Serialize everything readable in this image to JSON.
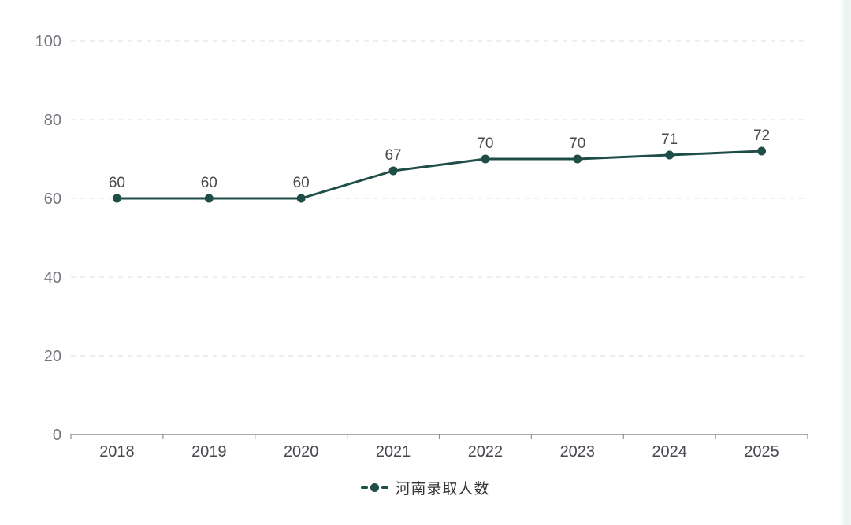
{
  "chart_data": {
    "type": "line",
    "title": "",
    "categories": [
      "2018",
      "2019",
      "2020",
      "2021",
      "2022",
      "2023",
      "2024",
      "2025"
    ],
    "series": [
      {
        "name": "河南录取人数",
        "values": [
          60,
          60,
          60,
          67,
          70,
          70,
          71,
          72
        ]
      }
    ],
    "xlabel": "",
    "ylabel": "",
    "ylim": [
      0,
      100
    ],
    "yticks": [
      0,
      20,
      40,
      60,
      80,
      100
    ],
    "grid": "horizontal-dashed",
    "show_point_labels": true,
    "legend_position": "bottom-center"
  },
  "legend": {
    "label": "河南录取人数"
  },
  "colors": {
    "series_line": "#1f4e48",
    "point_fill": "#1f4e48",
    "grid_line": "#dcdcdc",
    "axis_line": "#8f8f8f",
    "y_tick_label": "#75757d",
    "x_tick_label": "#47474f",
    "value_label": "#4a4a50",
    "legend_text": "#333333",
    "background": "#ffffff"
  }
}
